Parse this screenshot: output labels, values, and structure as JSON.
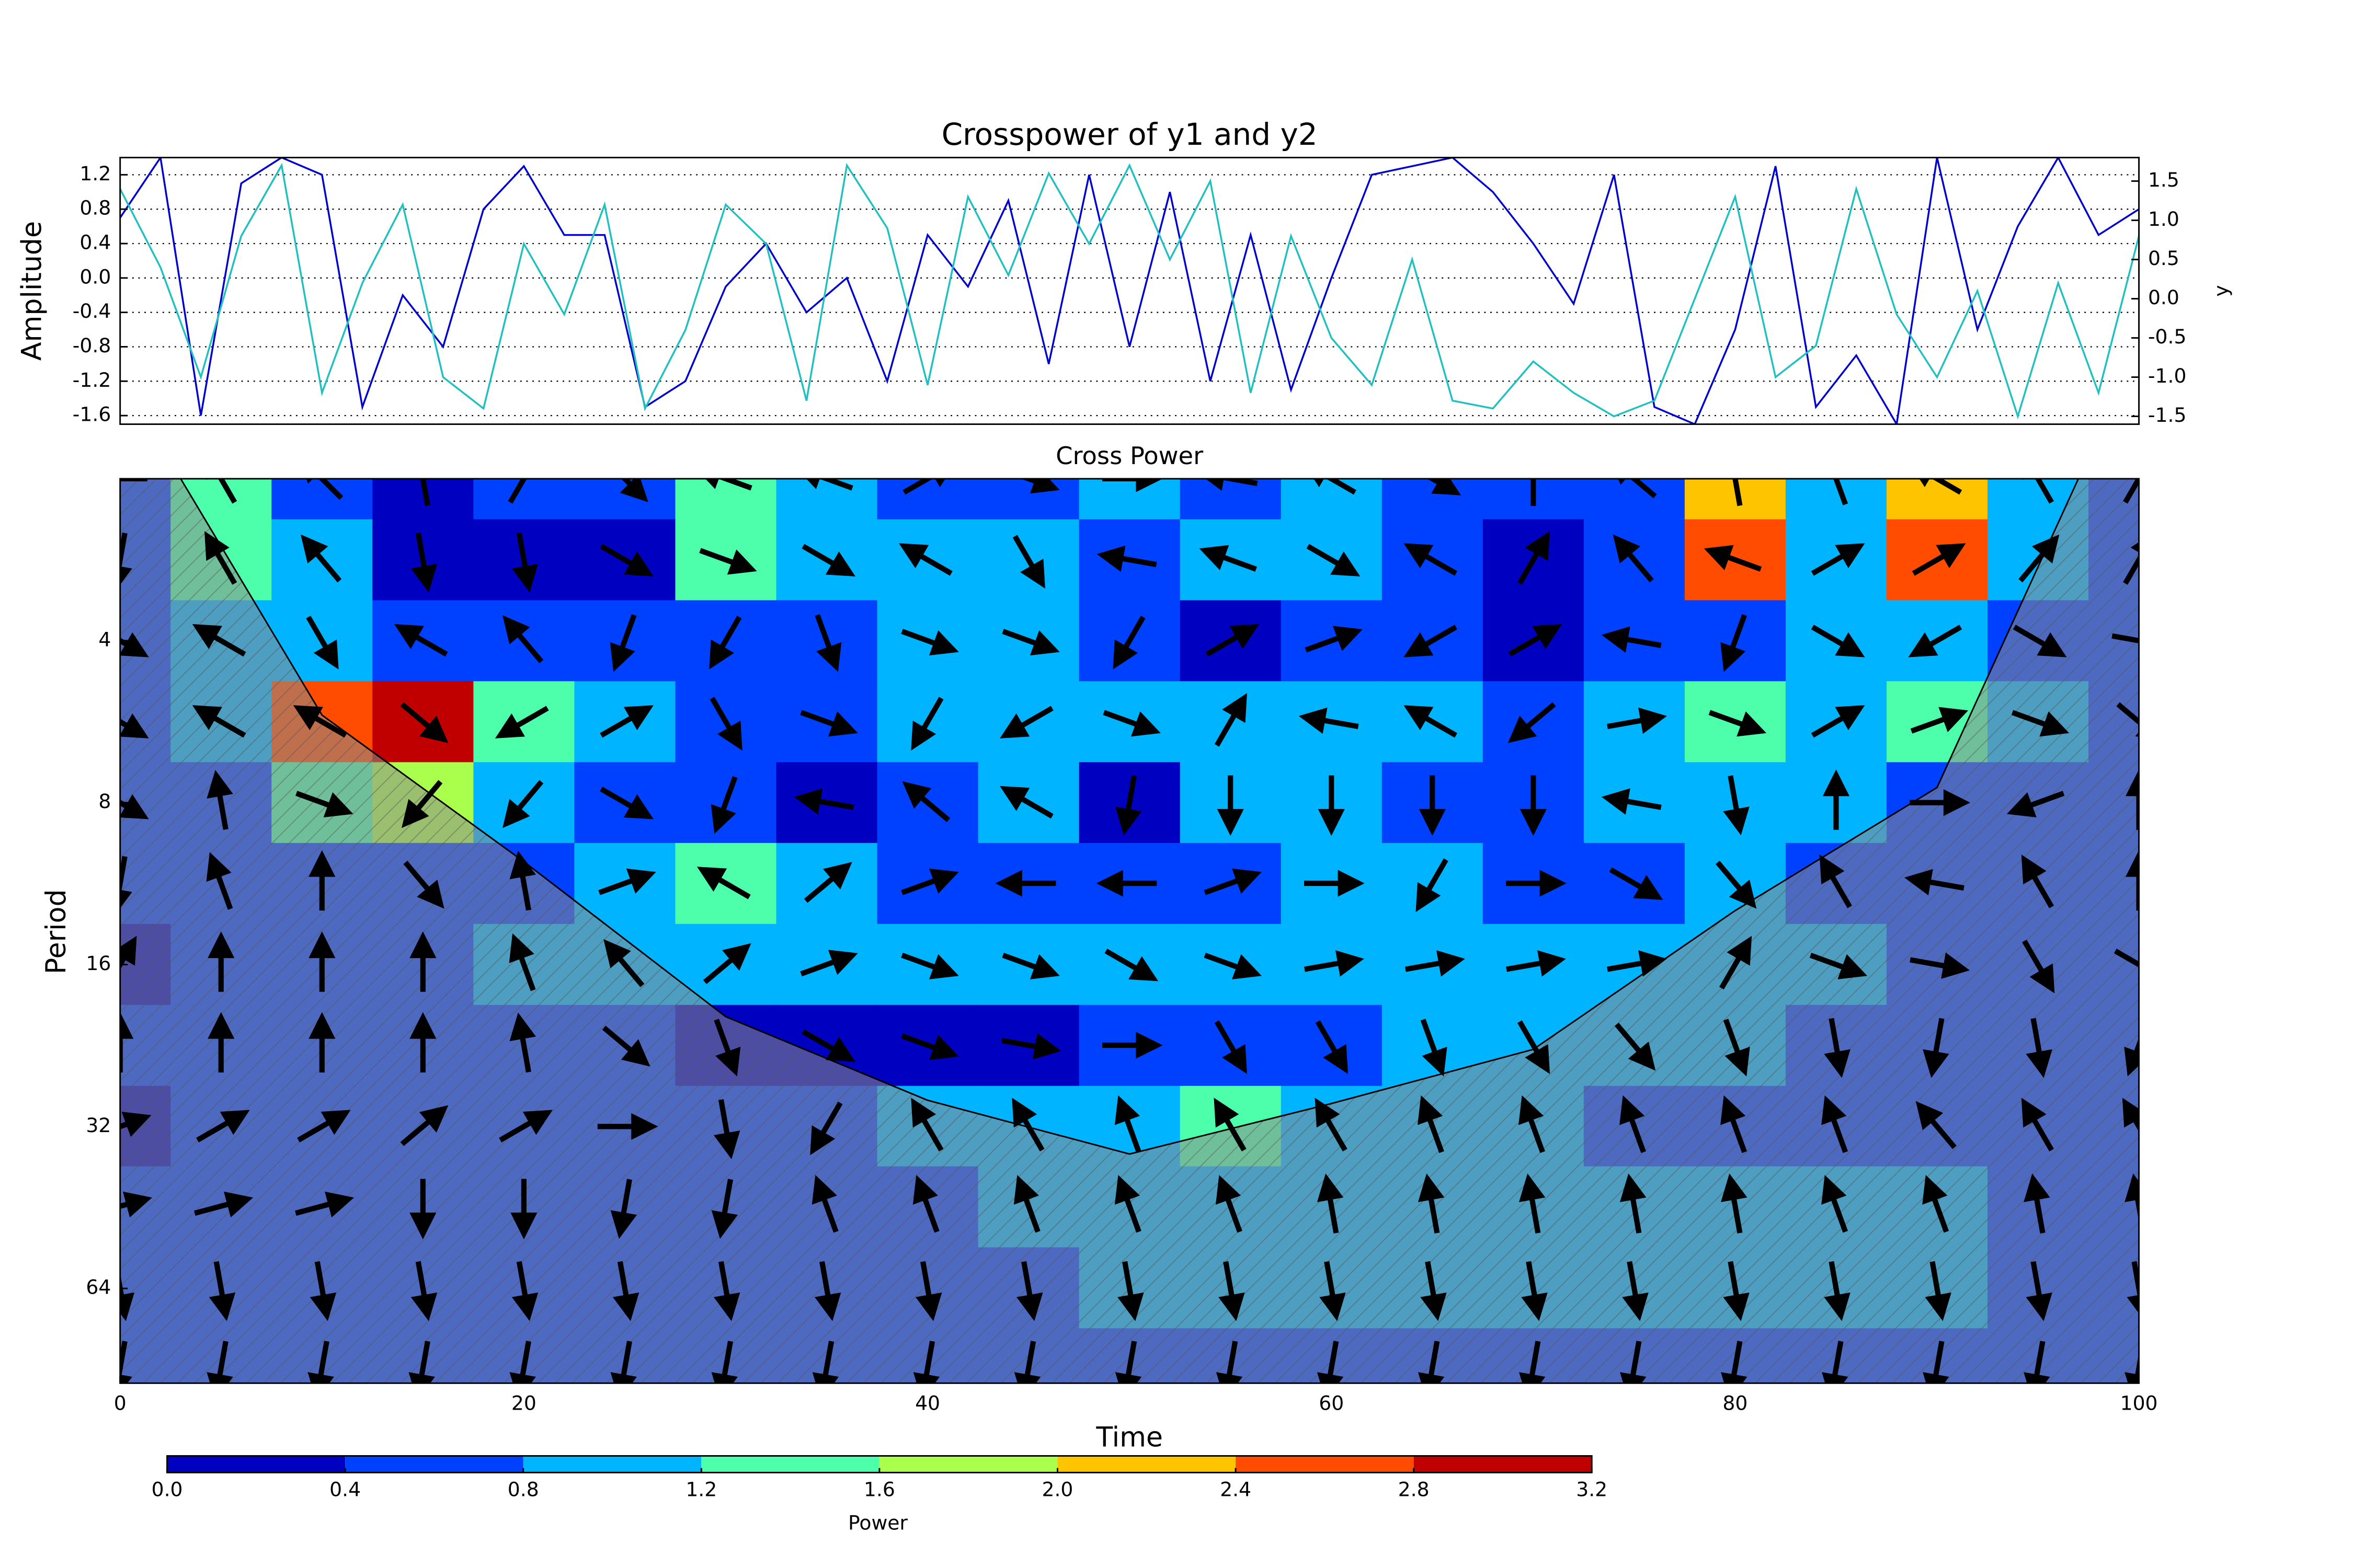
{
  "chart_data": [
    {
      "type": "line",
      "title": "Crosspower of y1 and y2",
      "ylabel": "Amplitude",
      "y2label": "y",
      "x": [
        0,
        2,
        4,
        6,
        8,
        10,
        12,
        14,
        16,
        18,
        20,
        22,
        24,
        26,
        28,
        30,
        32,
        34,
        36,
        38,
        40,
        42,
        44,
        46,
        48,
        50,
        52,
        54,
        56,
        58,
        60,
        62,
        64,
        66,
        68,
        70,
        72,
        74,
        76,
        78,
        80,
        82,
        84,
        86,
        88,
        90,
        92,
        94,
        96,
        98,
        100
      ],
      "series": [
        {
          "name": "y1",
          "color": "#0000cc",
          "axis": "y",
          "values": [
            0.7,
            1.4,
            -1.6,
            1.1,
            1.4,
            1.2,
            -1.5,
            -0.2,
            -0.8,
            0.8,
            1.3,
            0.5,
            0.5,
            -1.5,
            -1.2,
            -0.1,
            0.4,
            -0.4,
            0.0,
            -1.2,
            0.5,
            -0.1,
            0.9,
            -1.0,
            1.2,
            -0.8,
            1.0,
            -1.2,
            0.5,
            -1.3,
            0.0,
            1.2,
            1.3,
            1.4,
            1.0,
            0.4,
            -0.3,
            1.2,
            -1.5,
            -1.7,
            -0.6,
            1.3,
            -1.5,
            -0.9,
            -1.7,
            1.4,
            -0.6,
            0.6,
            1.4,
            0.5,
            0.8
          ]
        },
        {
          "name": "y2",
          "color": "#20c0c0",
          "axis": "y2",
          "values": [
            1.4,
            0.4,
            -1.0,
            0.8,
            1.7,
            -1.2,
            0.2,
            1.2,
            -1.0,
            -1.4,
            0.7,
            -0.2,
            1.2,
            -1.4,
            -0.4,
            1.2,
            0.7,
            -1.3,
            1.7,
            0.9,
            -1.1,
            1.3,
            0.3,
            1.6,
            0.7,
            1.7,
            0.5,
            1.5,
            -1.2,
            0.8,
            -0.5,
            -1.1,
            0.5,
            -1.3,
            -1.4,
            -0.8,
            -1.2,
            -1.5,
            -1.3,
            0.0,
            1.3,
            -1.0,
            -0.6,
            1.4,
            -0.2,
            -1.0,
            0.1,
            -1.5,
            0.2,
            -1.2,
            0.8
          ]
        }
      ],
      "xlim": [
        0,
        100
      ],
      "ylim": [
        -1.7,
        1.4
      ],
      "yticks": [
        -1.6,
        -1.2,
        -0.8,
        -0.4,
        {
          "value": 0,
          "label": "0.0"
        },
        0.4,
        0.8,
        1.2
      ],
      "y2lim": [
        -1.6,
        1.8
      ],
      "y2ticks": [
        -1.5,
        {
          "value": -1,
          "label": "-1.0"
        },
        -0.5,
        {
          "value": 0,
          "label": "0.0"
        },
        0.5,
        {
          "value": 1,
          "label": "1.0"
        },
        1.5
      ],
      "grid": true
    },
    {
      "type": "contour",
      "title": "Cross Power",
      "xlabel": "Time",
      "ylabel": "Period",
      "x": [
        0,
        5,
        10,
        15,
        20,
        25,
        30,
        35,
        40,
        45,
        50,
        55,
        60,
        65,
        70,
        75,
        80,
        85,
        90,
        95,
        100
      ],
      "periods": [
        2,
        2.83,
        4,
        5.66,
        8,
        11.3,
        16,
        22.6,
        32,
        45,
        64,
        90
      ],
      "values": [
        [
          0.5,
          1.2,
          0.6,
          0.2,
          0.5,
          0.4,
          1.5,
          1.0,
          0.5,
          0.7,
          0.9,
          0.6,
          0.8,
          0.7,
          0.5,
          0.6,
          2.0,
          1.0,
          2.0,
          1.0,
          0.6
        ],
        [
          0.6,
          1.5,
          0.9,
          0.3,
          0.3,
          0.3,
          1.3,
          0.9,
          0.8,
          0.9,
          0.5,
          0.9,
          1.0,
          0.6,
          0.3,
          0.5,
          2.6,
          0.9,
          2.4,
          0.8,
          0.6
        ],
        [
          0.5,
          0.8,
          1.0,
          0.5,
          0.6,
          0.7,
          0.5,
          0.4,
          0.9,
          1.0,
          0.4,
          0.3,
          0.5,
          0.4,
          0.3,
          0.4,
          0.7,
          0.8,
          0.9,
          0.6,
          0.5
        ],
        [
          0.5,
          0.9,
          2.5,
          2.9,
          1.2,
          0.8,
          0.6,
          0.4,
          0.9,
          1.0,
          1.0,
          1.0,
          0.9,
          0.8,
          0.7,
          0.9,
          1.2,
          1.0,
          1.3,
          0.9,
          0.6
        ],
        [
          0.6,
          0.5,
          1.4,
          1.6,
          0.9,
          0.5,
          0.4,
          0.3,
          0.6,
          0.9,
          0.3,
          0.9,
          0.8,
          0.5,
          0.6,
          0.9,
          1.0,
          0.9,
          0.7,
          0.5,
          0.5
        ],
        [
          0.4,
          0.4,
          0.5,
          0.6,
          0.7,
          0.9,
          1.3,
          1.0,
          0.5,
          0.4,
          0.5,
          0.7,
          0.8,
          1.0,
          0.7,
          0.5,
          0.9,
          0.7,
          0.5,
          0.4,
          0.4
        ],
        [
          0.3,
          0.5,
          0.5,
          0.6,
          0.8,
          0.9,
          1.0,
          1.0,
          0.9,
          0.8,
          0.9,
          0.9,
          1.0,
          1.0,
          0.9,
          0.9,
          1.0,
          0.8,
          0.7,
          0.5,
          0.5
        ],
        [
          0.5,
          0.5,
          0.6,
          0.6,
          0.6,
          0.5,
          0.3,
          0.3,
          0.3,
          0.3,
          0.4,
          0.6,
          0.7,
          0.8,
          0.9,
          0.9,
          0.8,
          0.7,
          0.6,
          0.5,
          0.5
        ],
        [
          0.3,
          0.4,
          0.5,
          0.5,
          0.5,
          0.5,
          0.6,
          0.7,
          0.8,
          0.9,
          1.0,
          1.3,
          1.1,
          0.9,
          0.8,
          0.7,
          0.7,
          0.7,
          0.6,
          0.6,
          0.6
        ],
        [
          0.5,
          0.5,
          0.5,
          0.5,
          0.5,
          0.6,
          0.6,
          0.6,
          0.7,
          0.8,
          0.9,
          1.0,
          1.0,
          1.0,
          1.1,
          1.0,
          1.0,
          0.9,
          0.8,
          0.7,
          0.6
        ],
        [
          0.7,
          0.7,
          0.7,
          0.7,
          0.7,
          0.7,
          0.7,
          0.7,
          0.7,
          0.7,
          0.8,
          0.8,
          0.8,
          0.8,
          0.8,
          0.8,
          0.8,
          0.8,
          0.8,
          0.7,
          0.7
        ],
        [
          0.5,
          0.5,
          0.5,
          0.5,
          0.5,
          0.5,
          0.5,
          0.5,
          0.5,
          0.5,
          0.5,
          0.5,
          0.5,
          0.5,
          0.5,
          0.5,
          0.5,
          0.5,
          0.5,
          0.5,
          0.5
        ]
      ],
      "phase": [
        [
          180,
          120,
          135,
          100,
          60,
          -45,
          160,
          160,
          30,
          -20,
          0,
          170,
          150,
          -30,
          90,
          140,
          100,
          110,
          150,
          120,
          60
        ],
        [
          -100,
          120,
          130,
          -80,
          -80,
          -30,
          -20,
          -30,
          150,
          -60,
          170,
          160,
          -30,
          150,
          60,
          130,
          160,
          30,
          30,
          50,
          60
        ],
        [
          -30,
          150,
          -60,
          150,
          130,
          -110,
          -120,
          -70,
          -20,
          -20,
          -120,
          30,
          20,
          -150,
          30,
          170,
          -110,
          -30,
          -150,
          -30,
          -10
        ],
        [
          -30,
          150,
          150,
          -40,
          -150,
          30,
          -60,
          -20,
          -120,
          -150,
          -20,
          60,
          170,
          150,
          -140,
          10,
          -20,
          30,
          20,
          -20,
          -40
        ],
        [
          -30,
          100,
          -20,
          -130,
          -130,
          -30,
          -110,
          170,
          140,
          150,
          -100,
          -90,
          -90,
          -90,
          -90,
          170,
          -80,
          90,
          0,
          -160,
          90
        ],
        [
          -100,
          110,
          90,
          -50,
          100,
          20,
          150,
          40,
          20,
          180,
          180,
          20,
          0,
          -120,
          0,
          -30,
          -50,
          120,
          170,
          120,
          90
        ],
        [
          60,
          90,
          90,
          90,
          110,
          130,
          40,
          20,
          -20,
          -20,
          -30,
          -20,
          10,
          10,
          10,
          10,
          60,
          -20,
          -10,
          -60,
          -30
        ],
        [
          90,
          90,
          90,
          90,
          100,
          -40,
          -70,
          -30,
          -20,
          -10,
          0,
          -60,
          -60,
          -70,
          -60,
          -50,
          -70,
          -80,
          -100,
          -80,
          -110
        ],
        [
          20,
          30,
          30,
          40,
          30,
          0,
          -80,
          -120,
          120,
          120,
          110,
          120,
          120,
          110,
          110,
          110,
          110,
          110,
          130,
          120,
          120
        ],
        [
          15,
          15,
          15,
          -90,
          -90,
          -100,
          -100,
          110,
          110,
          110,
          110,
          110,
          100,
          100,
          100,
          100,
          100,
          110,
          110,
          100,
          100
        ],
        [
          -80,
          -80,
          -80,
          -80,
          -80,
          -80,
          -80,
          -80,
          -80,
          -80,
          -80,
          -80,
          -80,
          -80,
          -80,
          -80,
          -80,
          -80,
          -80,
          -80,
          -80
        ],
        [
          -100,
          -100,
          -100,
          -100,
          -100,
          -100,
          -100,
          -100,
          -100,
          -100,
          -100,
          -100,
          -100,
          -100,
          -100,
          -100,
          -100,
          -100,
          -100,
          -100,
          -100
        ]
      ],
      "coi": {
        "x": [
          3,
          10,
          20,
          30,
          40,
          50,
          60,
          70,
          80,
          90,
          97
        ],
        "values": [
          2,
          5.5,
          10.3,
          20,
          28.6,
          36,
          29,
          23,
          12.7,
          7.5,
          2
        ]
      },
      "xlim": [
        0,
        100
      ],
      "xticks": [
        0,
        20,
        40,
        60,
        80,
        100
      ],
      "ylim": [
        2,
        96
      ],
      "yticks": [
        4,
        8,
        16,
        32,
        64
      ],
      "log_scale": true,
      "y_inverted": true,
      "levels": [
        {
          "value": 0,
          "label": "0.0"
        },
        0.4,
        0.8,
        1.2,
        1.6,
        {
          "value": 2,
          "label": "2.0"
        },
        2.4,
        2.8,
        3.2
      ],
      "colors": [
        "#0000c0",
        "#0040ff",
        "#00b4ff",
        "#4dffaa",
        "#aaff4d",
        "#ffc400",
        "#ff4c00",
        "#c00000"
      ],
      "colorbar_label": "Power"
    }
  ]
}
